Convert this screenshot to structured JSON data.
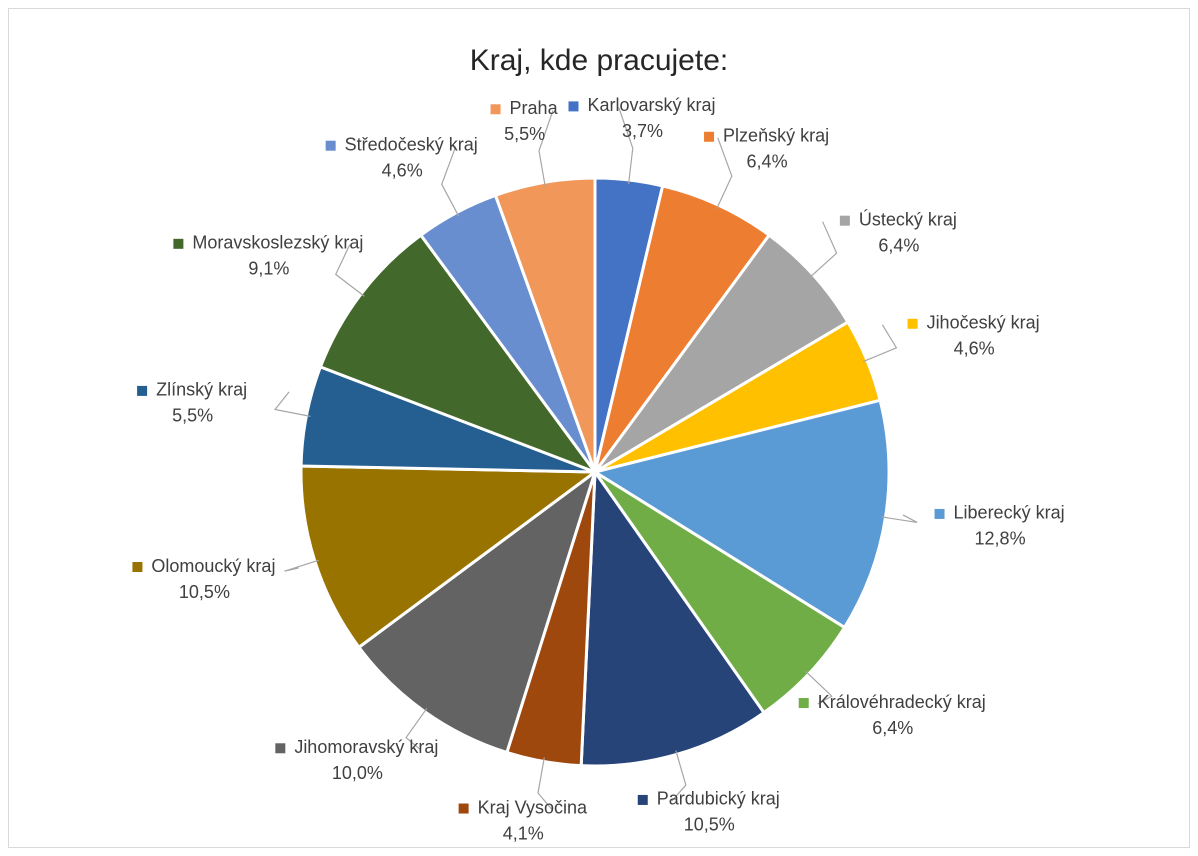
{
  "chart_data": {
    "type": "pie",
    "title": "Kraj, kde pracujete:",
    "categories": [
      "Karlovarský kraj",
      "Plzeňský kraj",
      "Ústecký kraj",
      "Jihočeský kraj",
      "Liberecký kraj",
      "Královéhradecký kraj",
      "Pardubický kraj",
      "Kraj Vysočina",
      "Jihomoravský kraj",
      "Olomoucký kraj",
      "Zlínský kraj",
      "Moravskoslezský kraj",
      "Středočeský kraj",
      "Praha"
    ],
    "values": [
      3.7,
      6.4,
      6.4,
      4.6,
      12.8,
      6.4,
      10.5,
      4.1,
      10.0,
      10.5,
      5.5,
      9.1,
      4.6,
      5.5
    ],
    "value_labels": [
      "3,7%",
      "6,4%",
      "6,4%",
      "4,6%",
      "12,8%",
      "6,4%",
      "10,5%",
      "4,1%",
      "10,0%",
      "10,5%",
      "5,5%",
      "9,1%",
      "4,6%",
      "5,5%"
    ],
    "colors": [
      "#4472c4",
      "#ed7d31",
      "#a5a5a5",
      "#ffc000",
      "#5b9bd5",
      "#70ad47",
      "#264478",
      "#9e480e",
      "#636363",
      "#997300",
      "#255e91",
      "#43682b",
      "#698ed0",
      "#f1975a"
    ]
  }
}
